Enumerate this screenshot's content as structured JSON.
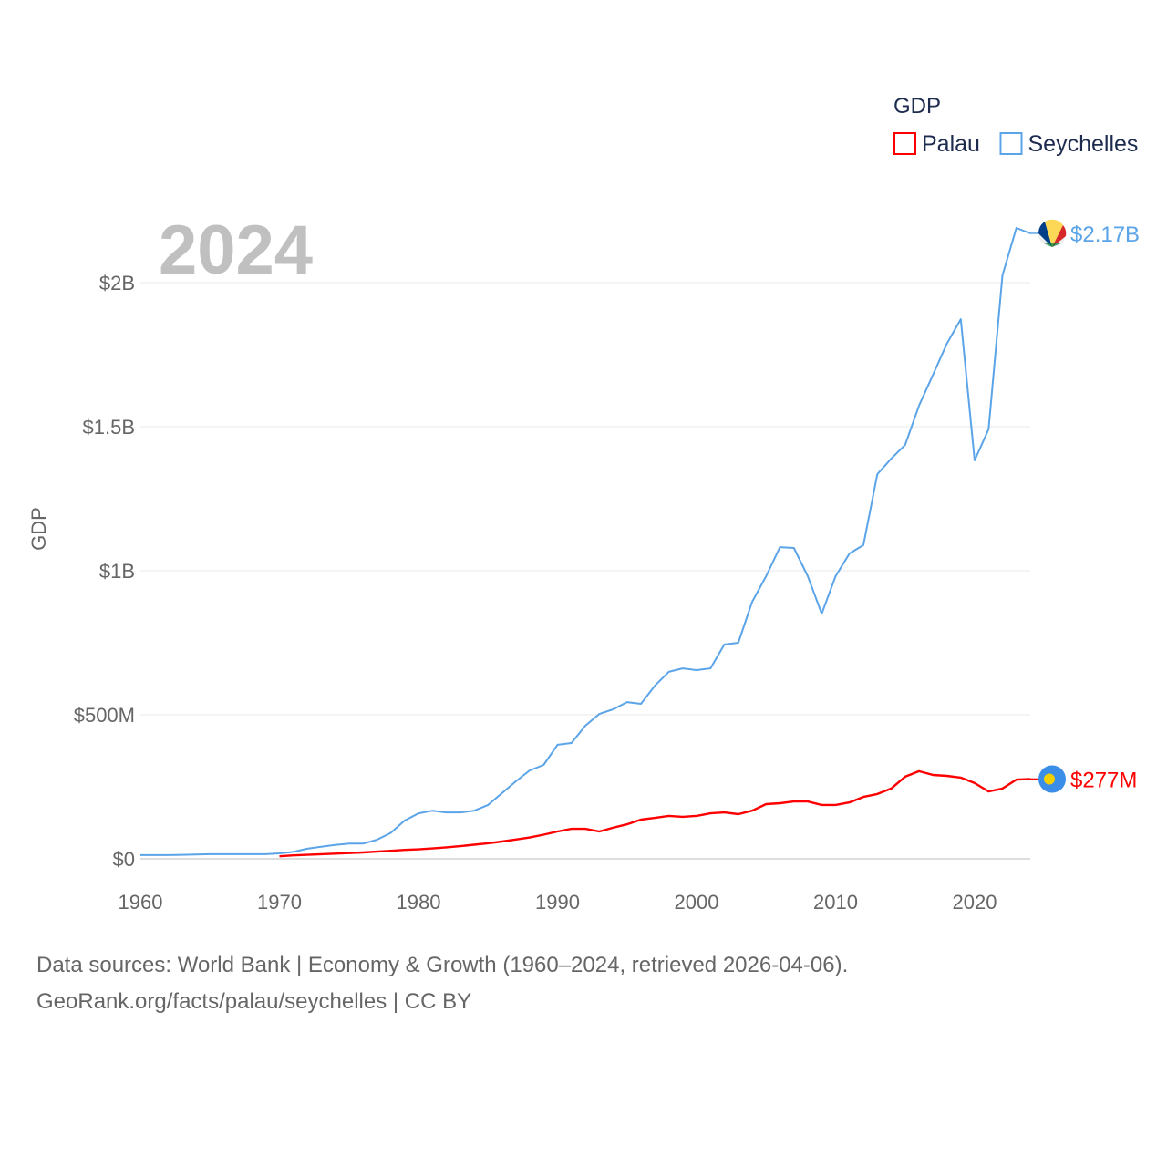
{
  "chart_data": {
    "type": "line",
    "big_year_label": "2024",
    "ylabel": "GDP",
    "legend": {
      "title": "GDP",
      "placement": "top-right"
    },
    "xlim": [
      1960,
      2024
    ],
    "ylim": [
      0,
      2250
    ],
    "y_unit": "USD millions",
    "x_ticks": [
      1960,
      1970,
      1980,
      1990,
      2000,
      2010,
      2020
    ],
    "y_ticks": [
      {
        "v": 0,
        "label": "$0"
      },
      {
        "v": 500,
        "label": "$500M"
      },
      {
        "v": 1000,
        "label": "$1B"
      },
      {
        "v": 1500,
        "label": "$1.5B"
      },
      {
        "v": 2000,
        "label": "$2B"
      }
    ],
    "grid": true,
    "series": [
      {
        "name": "Palau",
        "color": "#ff0000",
        "end_label": "$277M",
        "start_year": 1970,
        "values": [
          9,
          12,
          14,
          16,
          18,
          20,
          22,
          25,
          28,
          31,
          33,
          36,
          40,
          44,
          49,
          54,
          60,
          67,
          74,
          84,
          95,
          104,
          104,
          95,
          108,
          120,
          136,
          142,
          149,
          146,
          149,
          158,
          161,
          155,
          167,
          190,
          193,
          199,
          199,
          187,
          187,
          196,
          215,
          225,
          244,
          285,
          304,
          291,
          288,
          282,
          263,
          234,
          244,
          275,
          277
        ]
      },
      {
        "name": "Seychelles",
        "color": "#5ba4e8",
        "end_label": "$2.17B",
        "start_year": 1960,
        "values": [
          13,
          13,
          13,
          14,
          15,
          16,
          16,
          16,
          16,
          16,
          19,
          24,
          35,
          42,
          48,
          53,
          53,
          66,
          90,
          133,
          158,
          167,
          161,
          161,
          167,
          187,
          228,
          269,
          307,
          326,
          396,
          402,
          462,
          503,
          519,
          544,
          538,
          601,
          649,
          661,
          655,
          661,
          744,
          750,
          892,
          981,
          1082,
          1079,
          981,
          851,
          981,
          1060,
          1089,
          1335,
          1389,
          1437,
          1573,
          1680,
          1788,
          1873,
          1383,
          1491,
          2025,
          2190,
          2171
        ]
      }
    ]
  },
  "footer": {
    "line1": "Data sources: World Bank | Economy & Growth (1960–2024, retrieved 2026-04-06).",
    "line2": "GeoRank.org/facts/palau/seychelles | CC BY"
  }
}
